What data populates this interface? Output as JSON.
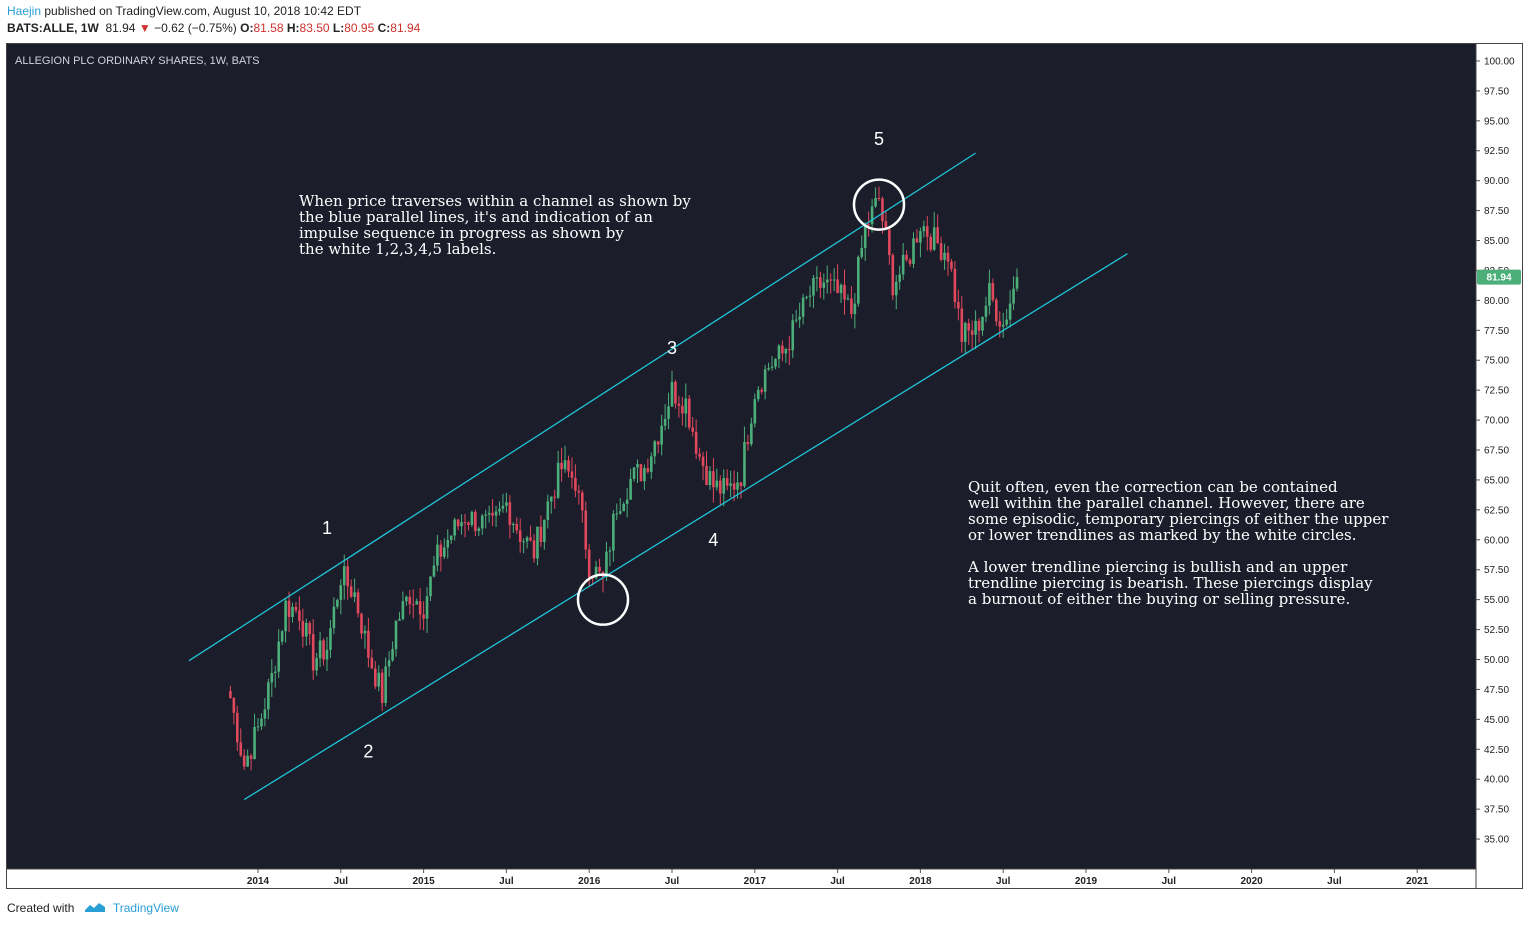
{
  "header": {
    "author": "Haejin",
    "published": " published on TradingView.com, August 10, 2018 10:42 EDT",
    "symbol": "BATS:ALLE, 1W",
    "last": "81.94",
    "arrow": "▼",
    "change": "−0.62 (−0.75%)",
    "o_label": "O:",
    "o_value": "81.58",
    "h_label": "H:",
    "h_value": "83.50",
    "l_label": "L:",
    "l_value": "80.95",
    "c_label": "C:",
    "c_value": "81.94"
  },
  "footer": {
    "created_with": "Created with",
    "brand": "TradingView"
  },
  "colors": {
    "background": "#1b1d2b",
    "up": "#4caf7a",
    "down": "#e0485c",
    "channel": "#1ec6d8",
    "annotation": "#ffffff",
    "price_tag": "#4caf7a"
  },
  "chart_data": {
    "type": "candlestick",
    "title": "ALLEGION PLC ORDINARY SHARES, 1W, BATS",
    "y_ticks": [
      "100.00",
      "97.50",
      "95.00",
      "92.50",
      "90.00",
      "87.50",
      "85.00",
      "82.50",
      "80.00",
      "77.50",
      "75.00",
      "72.50",
      "70.00",
      "67.50",
      "65.00",
      "62.50",
      "60.00",
      "57.50",
      "55.00",
      "52.50",
      "50.00",
      "47.50",
      "45.00",
      "42.50",
      "40.00",
      "37.50",
      "35.00"
    ],
    "x_ticks": [
      "2014",
      "Jul",
      "2015",
      "Jul",
      "2016",
      "Jul",
      "2017",
      "Jul",
      "2018",
      "Jul",
      "2019",
      "Jul",
      "2020",
      "Jul",
      "2021"
    ],
    "ylim": [
      32.5,
      101.5
    ],
    "xlim": [
      "2013-07",
      "2021-06"
    ],
    "last_price": "81.94",
    "series_close": [
      [
        "2013-11",
        46.8
      ],
      [
        "2013-12",
        41.2
      ],
      [
        "2014-01",
        44.2
      ],
      [
        "2014-02",
        48.5
      ],
      [
        "2014-03",
        54.5
      ],
      [
        "2014-04",
        54.0
      ],
      [
        "2014-05",
        50.0
      ],
      [
        "2014-06",
        51.0
      ],
      [
        "2014-07",
        57.0
      ],
      [
        "2014-08",
        55.5
      ],
      [
        "2014-09",
        50.5
      ],
      [
        "2014-10",
        47.0
      ],
      [
        "2014-11",
        53.0
      ],
      [
        "2014-12",
        55.5
      ],
      [
        "2015-01",
        54.5
      ],
      [
        "2015-02",
        58.5
      ],
      [
        "2015-03",
        60.5
      ],
      [
        "2015-04",
        62.0
      ],
      [
        "2015-05",
        61.5
      ],
      [
        "2015-06",
        61.0
      ],
      [
        "2015-07",
        63.0
      ],
      [
        "2015-08",
        60.5
      ],
      [
        "2015-09",
        59.0
      ],
      [
        "2015-10",
        63.0
      ],
      [
        "2015-11",
        66.0
      ],
      [
        "2015-12",
        65.0
      ],
      [
        "2016-01",
        58.0
      ],
      [
        "2016-02",
        56.5
      ],
      [
        "2016-03",
        63.0
      ],
      [
        "2016-04",
        65.0
      ],
      [
        "2016-05",
        66.0
      ],
      [
        "2016-06",
        69.0
      ],
      [
        "2016-07",
        72.5
      ],
      [
        "2016-08",
        71.5
      ],
      [
        "2016-09",
        67.0
      ],
      [
        "2016-10",
        64.5
      ],
      [
        "2016-11",
        64.0
      ],
      [
        "2016-12",
        65.5
      ],
      [
        "2017-01",
        72.5
      ],
      [
        "2017-02",
        74.5
      ],
      [
        "2017-03",
        75.5
      ],
      [
        "2017-04",
        78.0
      ],
      [
        "2017-05",
        80.5
      ],
      [
        "2017-06",
        81.5
      ],
      [
        "2017-07",
        80.5
      ],
      [
        "2017-08",
        79.0
      ],
      [
        "2017-09",
        86.0
      ],
      [
        "2017-10",
        88.5
      ],
      [
        "2017-11",
        81.5
      ],
      [
        "2017-12",
        83.0
      ],
      [
        "2018-01",
        86.5
      ],
      [
        "2018-02",
        85.0
      ],
      [
        "2018-03",
        84.0
      ],
      [
        "2018-04",
        77.0
      ],
      [
        "2018-05",
        77.5
      ],
      [
        "2018-06",
        80.5
      ],
      [
        "2018-07",
        78.0
      ],
      [
        "2018-08",
        81.94
      ]
    ],
    "trendlines": [
      {
        "name": "upper",
        "from": [
          "2013-08",
          49.9
        ],
        "to": [
          "2018-05",
          92.3
        ]
      },
      {
        "name": "lower",
        "from": [
          "2013-12",
          38.3
        ],
        "to": [
          "2019-04",
          83.9
        ]
      }
    ],
    "circles": [
      {
        "at": [
          "2016-02",
          55.0
        ]
      },
      {
        "at": [
          "2017-10",
          88.0
        ]
      }
    ],
    "wave_labels": [
      {
        "text": "1",
        "at": [
          "2014-06",
          60.5
        ]
      },
      {
        "text": "2",
        "at": [
          "2014-09",
          41.8
        ]
      },
      {
        "text": "3",
        "at": [
          "2016-07",
          75.5
        ]
      },
      {
        "text": "4",
        "at": [
          "2016-10",
          59.5
        ]
      },
      {
        "text": "5",
        "at": [
          "2017-10",
          93.0
        ]
      }
    ],
    "notes": [
      {
        "lines": [
          "When price traverses within a channel as shown by",
          "the blue parallel lines, it's and indication of an",
          "impulse sequence in progress as shown by",
          "the white 1,2,3,4,5 labels."
        ]
      },
      {
        "lines": [
          "Quit often, even the correction can be contained",
          "well within the parallel channel. However, there are",
          "some episodic, temporary piercings of either the upper",
          "or lower trendlines as marked by the white circles.",
          "",
          "A lower trendline piercing is bullish and an upper",
          "trendline piercing is bearish. These piercings display",
          "a burnout of either the buying or selling pressure."
        ]
      }
    ]
  }
}
